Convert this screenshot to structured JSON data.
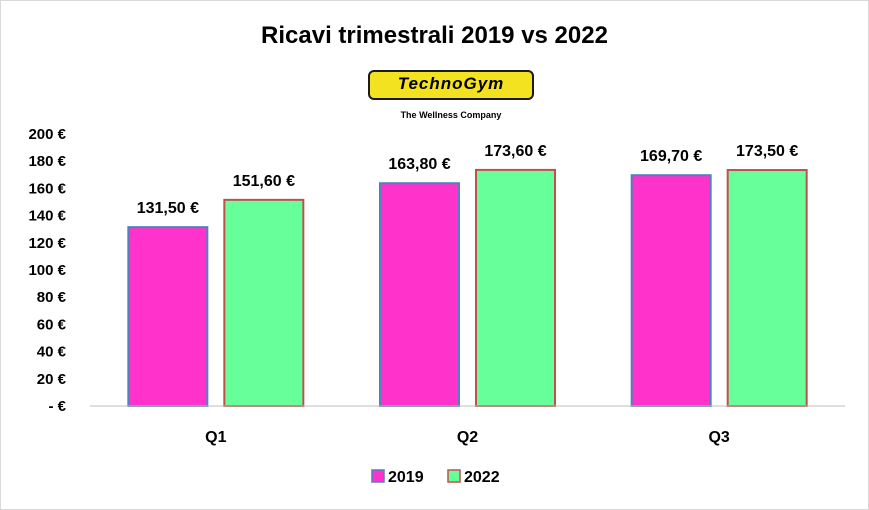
{
  "logo": {
    "brand": "TechnoGym",
    "tagline": "The Wellness Company"
  },
  "chart_data": {
    "type": "bar",
    "title": "Ricavi trimestrali  2019 vs 2022",
    "categories": [
      "Q1",
      "Q2",
      "Q3"
    ],
    "series": [
      {
        "name": "2019",
        "values": [
          131.5,
          163.8,
          169.7
        ],
        "labels": [
          "131,50 €",
          "163,80 €",
          "169,70 €"
        ],
        "color": "#ff33cc",
        "border": "#4f81bd"
      },
      {
        "name": "2022",
        "values": [
          151.6,
          173.6,
          173.5
        ],
        "labels": [
          "151,60 €",
          "173,60 €",
          "173,50 €"
        ],
        "color": "#66ff99",
        "border": "#c0504d"
      }
    ],
    "ylim": [
      0,
      200
    ],
    "yticks": [
      0,
      20,
      40,
      60,
      80,
      100,
      120,
      140,
      160,
      180,
      200
    ],
    "ytick_labels": [
      "- €",
      "20 €",
      "40 €",
      "60 €",
      "80 €",
      "100 €",
      "120 €",
      "140 €",
      "160 €",
      "180 €",
      "200 €"
    ],
    "xlabel": "",
    "ylabel": "",
    "grid": false,
    "legend_position": "bottom"
  }
}
